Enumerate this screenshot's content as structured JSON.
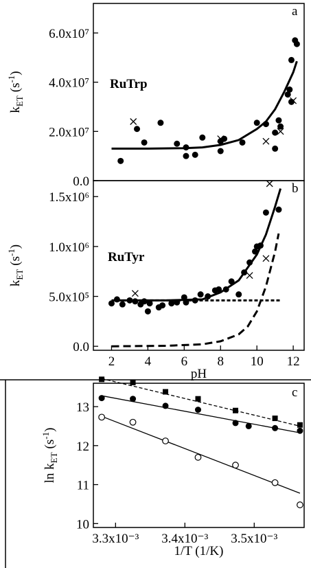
{
  "chart_data": [
    {
      "type": "scatter",
      "panel_label": "a",
      "annotation": "RuTrp",
      "ylabel": [
        "k",
        "ET",
        "(s",
        "-1",
        ")"
      ],
      "xlim": [
        1,
        12.6
      ],
      "ylim": [
        0,
        72000000
      ],
      "yticks": [
        {
          "value": 0,
          "label": "0.0"
        },
        {
          "value": 20000000,
          "label": "2.0x10⁷"
        },
        {
          "value": 40000000,
          "label": "4.0x10⁷"
        },
        {
          "value": 60000000,
          "label": "6.0x10⁷"
        }
      ],
      "series": [
        {
          "style": "filled-circle",
          "x": [
            2.5,
            3.4,
            3.8,
            4.7,
            5.6,
            6.1,
            6.1,
            6.6,
            7.0,
            8.0,
            8.0,
            8.2,
            9.2,
            10.0,
            10.5,
            11.0,
            11.0,
            11.2,
            11.3,
            11.7,
            11.8,
            11.9,
            11.9,
            12.1,
            12.2
          ],
          "values": [
            8000000,
            21000000,
            15500000,
            23500000,
            15000000,
            13500000,
            10000000,
            10500000,
            17500000,
            12000000,
            16000000,
            17000000,
            15500000,
            23500000,
            23000000,
            19500000,
            13000000,
            24500000,
            22000000,
            35000000,
            37000000,
            32000000,
            49000000,
            57000000,
            55500000
          ]
        },
        {
          "style": "cross",
          "x": [
            3.2,
            8.0,
            10.5,
            11.3,
            12.0
          ],
          "values": [
            24000000,
            17000000,
            16000000,
            20000000,
            32500000
          ]
        },
        {
          "style": "solid-line",
          "x": [
            2,
            4,
            6,
            7,
            8,
            9,
            10,
            10.5,
            11,
            11.5,
            12,
            12.2
          ],
          "values": [
            13000000,
            13000000,
            13200000,
            13500000,
            14500000,
            16500000,
            21000000,
            24000000,
            29000000,
            36000000,
            44000000,
            48500000
          ]
        }
      ]
    },
    {
      "type": "scatter",
      "panel_label": "b",
      "annotation": "RuTyr",
      "ylabel": [
        "k",
        "ET",
        "(s",
        "-1",
        ")"
      ],
      "xlabel": "pH",
      "xlim": [
        1,
        12.6
      ],
      "ylim": [
        -40000,
        1660000
      ],
      "xticks": [
        2,
        4,
        6,
        8,
        10,
        12
      ],
      "yticks": [
        {
          "value": 0,
          "label": "0.0"
        },
        {
          "value": 500000,
          "label": "5.0x10⁵"
        },
        {
          "value": 1000000,
          "label": "1.0x10⁶"
        },
        {
          "value": 1500000,
          "label": "1.5x10⁶"
        }
      ],
      "series": [
        {
          "style": "filled-circle",
          "x": [
            2.0,
            2.3,
            2.6,
            3.0,
            3.3,
            3.6,
            3.8,
            4.0,
            4.1,
            4.6,
            4.8,
            5.3,
            5.6,
            6.0,
            6.1,
            6.6,
            6.9,
            7.3,
            7.7,
            7.9,
            8.3,
            8.6,
            9.0,
            9.3,
            9.6,
            9.9,
            10.0,
            10.2,
            10.5,
            11.2
          ],
          "values": [
            430000,
            470000,
            420000,
            460000,
            450000,
            420000,
            450000,
            350000,
            430000,
            390000,
            410000,
            430000,
            440000,
            490000,
            440000,
            460000,
            520000,
            500000,
            560000,
            570000,
            570000,
            650000,
            520000,
            740000,
            840000,
            950000,
            1000000,
            1010000,
            1340000,
            1370000
          ]
        },
        {
          "style": "cross",
          "x": [
            3.3,
            9.6,
            10.5,
            10.7
          ],
          "values": [
            530000,
            710000,
            880000,
            1630000
          ]
        },
        {
          "style": "solid-line",
          "x": [
            2,
            5,
            7,
            8,
            9,
            10,
            10.5,
            11,
            11.3
          ],
          "values": [
            460000,
            460000,
            470000,
            540000,
            660000,
            920000,
            1120000,
            1400000,
            1580000
          ]
        },
        {
          "style": "dashed-line",
          "x": [
            2,
            11.3
          ],
          "values": [
            460000,
            460000
          ]
        },
        {
          "style": "dashed-line",
          "x": [
            2,
            5,
            7,
            8,
            9,
            9.5,
            10,
            10.5,
            11,
            11.2
          ],
          "values": [
            0,
            5000,
            20000,
            50000,
            120000,
            200000,
            350000,
            600000,
            950000,
            1130000
          ]
        }
      ]
    },
    {
      "type": "scatter",
      "panel_label": "c",
      "ylabel": [
        "ln k",
        "ET",
        "(s",
        "-1",
        ")"
      ],
      "xlabel": "1/T (1/K)",
      "xlim": [
        0.003268,
        0.003572
      ],
      "ylim": [
        9.9,
        13.6
      ],
      "xticks": [
        {
          "value": 0.0033,
          "label": "3.3x10⁻³"
        },
        {
          "value": 0.0034,
          "label": "3.4x10⁻³"
        },
        {
          "value": 0.0035,
          "label": "3.5x10⁻³"
        }
      ],
      "yticks": [
        10,
        11,
        12,
        13
      ],
      "series": [
        {
          "style": "dashed-thin-line",
          "x": [
            0.00328,
            0.003566
          ],
          "values": [
            13.72,
            12.5
          ]
        },
        {
          "style": "thin-line",
          "x": [
            0.00328,
            0.003566
          ],
          "values": [
            13.28,
            12.33
          ]
        },
        {
          "style": "thin-line",
          "x": [
            0.00328,
            0.003566
          ],
          "values": [
            12.75,
            10.78
          ]
        },
        {
          "style": "square",
          "x": [
            0.00328,
            0.003325,
            0.003372,
            0.003419,
            0.003473,
            0.00353,
            0.003566
          ],
          "values": [
            13.7,
            13.62,
            13.38,
            13.2,
            12.9,
            12.7,
            12.53
          ]
        },
        {
          "style": "filled-circle",
          "x": [
            0.00328,
            0.003325,
            0.003372,
            0.003419,
            0.003473,
            0.003492,
            0.00353,
            0.003566
          ],
          "values": [
            13.22,
            13.2,
            13.02,
            12.92,
            12.58,
            12.5,
            12.45,
            12.38
          ]
        },
        {
          "style": "open-circle",
          "x": [
            0.00328,
            0.003325,
            0.003372,
            0.003419,
            0.003473,
            0.00353,
            0.003566
          ],
          "values": [
            12.73,
            12.6,
            12.12,
            11.7,
            11.5,
            11.05,
            10.48
          ]
        }
      ]
    }
  ]
}
